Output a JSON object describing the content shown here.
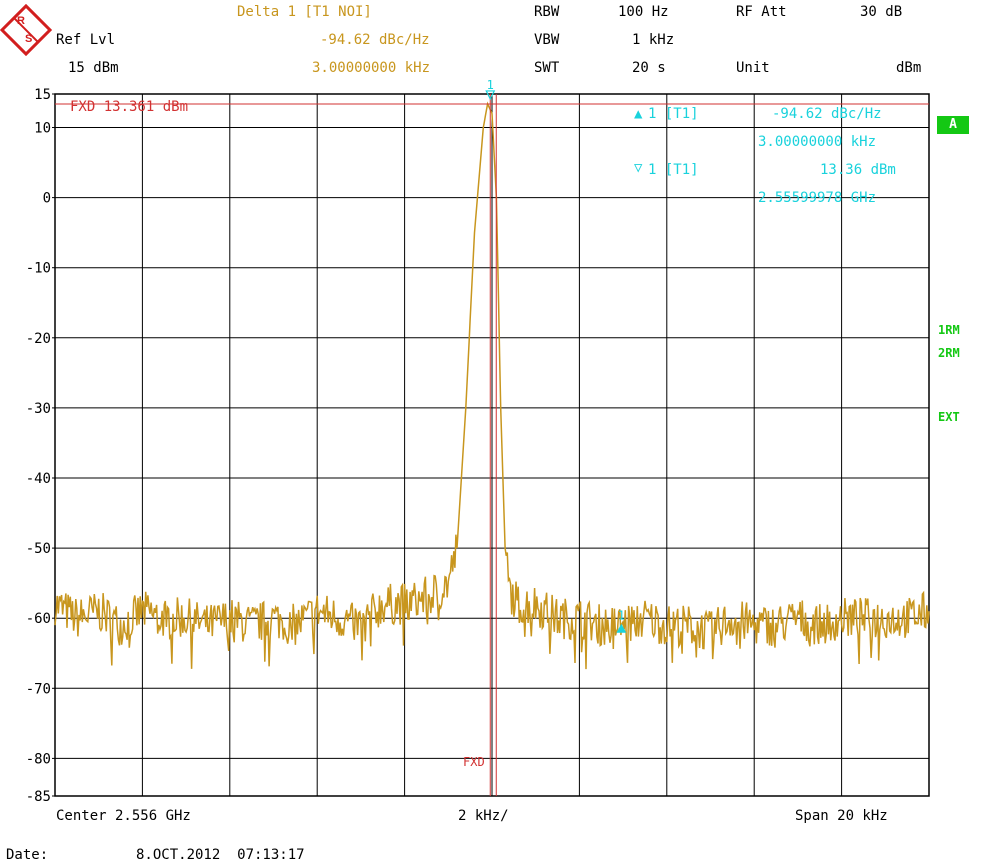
{
  "header": {
    "delta_label": "Delta 1 [T1 NOI]",
    "delta_value": "-94.62 dBc/Hz",
    "delta_freq": "3.00000000 kHz",
    "ref_lvl_label": "Ref Lvl",
    "ref_lvl_value": "15 dBm",
    "rbw_label": "RBW",
    "rbw_value": "100 Hz",
    "vbw_label": "VBW",
    "vbw_value": "1 kHz",
    "swt_label": "SWT",
    "swt_value": "20 s",
    "rfatt_label": "RF Att",
    "rfatt_value": "30 dB",
    "unit_label": "Unit",
    "unit_value": "dBm"
  },
  "marker_info": {
    "m1_label": "1 [T1]",
    "m1_value": "-94.62 dBc/Hz",
    "m1_freq": "3.00000000 kHz",
    "m2_label": "1 [T1]",
    "m2_value": "13.36 dBm",
    "m2_freq": "2.55599978 GHz",
    "marker_num": "1"
  },
  "side_labels": {
    "a_box": "A",
    "rm1": "1RM",
    "rm2": "2RM",
    "ext": "EXT"
  },
  "fxd": {
    "label": "FXD 13.361 dBm",
    "bottom_label": "FXD"
  },
  "footer": {
    "center": "Center 2.556 GHz",
    "div": "2 kHz/",
    "span": "Span 20 kHz",
    "date_label": "Date:",
    "date_value": "8.OCT.2012  07:13:17"
  },
  "colors": {
    "trace": "#c8961e",
    "marker": "#19d2dc",
    "fxd_line": "#d23232",
    "status": "#14c814"
  },
  "chart_data": {
    "type": "line",
    "xlabel": "",
    "ylabel": "",
    "x_center_ghz": 2.556,
    "x_span_khz": 20,
    "x_range_khz": [
      -10,
      10
    ],
    "ylim": [
      -85,
      15
    ],
    "y_ticks": [
      15,
      10,
      0,
      -10,
      -20,
      -30,
      -40,
      -50,
      -60,
      -70,
      -80,
      -85
    ],
    "y_tick_labels": [
      "15",
      "10",
      "0",
      "-10",
      "-20",
      "-30",
      "-40",
      "-50",
      "-60",
      "-70",
      "-80",
      "-85"
    ],
    "grid": true,
    "fxd_level_dbm": 13.361,
    "markers": [
      {
        "name": "1",
        "x_khz": -0.04,
        "y_dbm": 13.36
      },
      {
        "name": "1",
        "x_khz": 2.96,
        "y_dbm": -61.5
      }
    ],
    "series": [
      {
        "x": [
          -10.0,
          -9.5,
          -9.0,
          -8.5,
          -8.0,
          -7.5,
          -7.0,
          -6.5,
          -6.0,
          -5.5,
          -5.0,
          -4.5,
          -4.0,
          -3.5,
          -3.0,
          -2.5,
          -2.0,
          -1.5,
          -1.2,
          -1.0,
          -0.8,
          -0.6,
          -0.4,
          -0.2,
          -0.1,
          0.0,
          0.1,
          0.2,
          0.3,
          0.4,
          0.6,
          0.8,
          1.0,
          1.5,
          2.0,
          2.5,
          3.0,
          3.5,
          4.0,
          4.5,
          5.0,
          5.5,
          6.0,
          6.5,
          7.0,
          7.5,
          8.0,
          8.5,
          9.0,
          9.5,
          10.0
        ],
        "values": [
          -58,
          -60,
          -59,
          -61,
          -59,
          -60,
          -60,
          -61,
          -60,
          -61,
          -60,
          -61,
          -59,
          -60,
          -61,
          -58,
          -58,
          -57,
          -56,
          -55,
          -50,
          -30,
          -5,
          10,
          13.36,
          12,
          0,
          -30,
          -50,
          -56,
          -58,
          -58,
          -58,
          -60,
          -60,
          -61,
          -61,
          -60,
          -61,
          -61,
          -62,
          -60,
          -61,
          -61,
          -60,
          -61,
          -60,
          -60,
          -60,
          -60,
          -59
        ]
      }
    ]
  }
}
